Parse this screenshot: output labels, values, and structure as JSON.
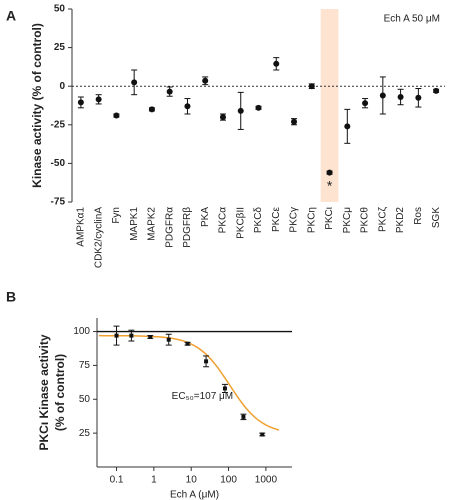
{
  "chart_data": [
    {
      "type": "errorbar",
      "panel_label": "A",
      "ylabel": "Kinase activity (% of control)",
      "annotation": "Ech A 50 μM",
      "significance": "*",
      "highlight": "PKCι",
      "highlight_color": "#fde3d0",
      "reference_line": 0,
      "color": "#111111",
      "categories": [
        "AMPKα1",
        "CDK2/cyclinA",
        "Fyn",
        "MAPK1",
        "MAPK2",
        "PDGFRα",
        "PDGFRβ",
        "PKA",
        "PKCα",
        "PKCβII",
        "PKCδ",
        "PKCε",
        "PKCγ",
        "PKCη",
        "PKCι",
        "PKCμ",
        "PKCθ",
        "PKCζ",
        "PKD2",
        "Ros",
        "SGK"
      ],
      "values": [
        -10.5,
        -8.5,
        -19,
        2.5,
        -15,
        -3.5,
        -13,
        3.5,
        -20,
        -16,
        -14,
        14.5,
        -23,
        0,
        -56,
        -26,
        -11,
        -6,
        -7,
        -7.5,
        -3
      ],
      "errors": [
        3.5,
        3,
        1,
        8,
        1,
        3,
        5,
        2.5,
        2,
        12,
        1,
        4,
        2,
        1.5,
        1,
        11,
        3,
        12,
        5,
        6,
        1
      ],
      "ylim": [
        -75,
        50
      ],
      "yticks": [
        50,
        25,
        0,
        -25,
        -50,
        -75
      ]
    },
    {
      "type": "scatter",
      "panel_label": "B",
      "ylabel": [
        "PKCι Kinase activity",
        "(% of control)"
      ],
      "xlabel": "Ech A (μM)",
      "annotation": "EC₅₀=107 μM",
      "log_x": true,
      "reference_line": 100,
      "color": "#111111",
      "curve_color": "#f0a030",
      "curve": {
        "top": 97,
        "bottom": 24,
        "ec50": 107,
        "hill": 1
      },
      "x": [
        0.1,
        0.25,
        0.8,
        2.5,
        8,
        25,
        80,
        250,
        800
      ],
      "values": [
        97,
        97,
        96,
        94,
        91,
        78,
        58,
        37,
        24
      ],
      "errors": [
        7,
        4,
        1,
        4,
        1,
        4,
        3,
        2,
        1
      ],
      "xlim": [
        0.03,
        5000
      ],
      "xticks": [
        0.1,
        1,
        10,
        100,
        1000
      ],
      "ylim": [
        0,
        110
      ],
      "yticks": [
        25,
        50,
        75,
        100
      ]
    }
  ]
}
